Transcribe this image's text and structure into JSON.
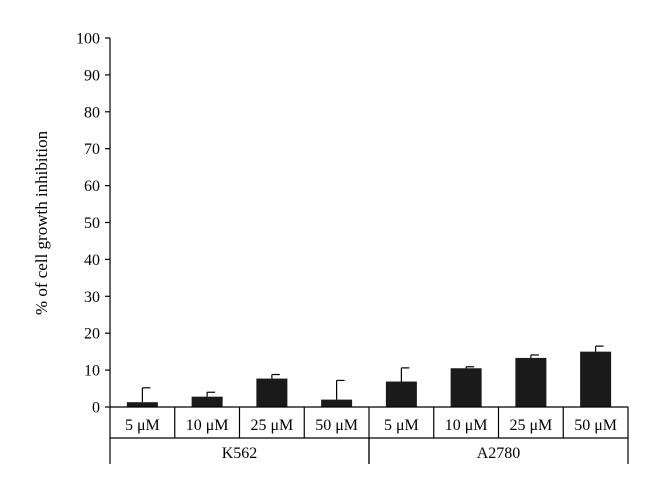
{
  "chart_data": {
    "type": "bar",
    "title": "",
    "xlabel": "",
    "ylabel": "% of cell growth inhibition",
    "ylim": [
      0,
      100
    ],
    "yticks": [
      0,
      10,
      20,
      30,
      40,
      50,
      60,
      70,
      80,
      90,
      100
    ],
    "grid": false,
    "legend": "none",
    "bar_color": "#1a1a1a",
    "groups": [
      {
        "name": "K562",
        "categories": [
          "5 μM",
          "10 μM",
          "25 μM",
          "50 μM"
        ]
      },
      {
        "name": "A2780",
        "categories": [
          "5 μM",
          "10 μM",
          "25 μM",
          "50 μM"
        ]
      }
    ],
    "categories": [
      "5 μM",
      "10 μM",
      "25 μM",
      "50 μM",
      "5 μM",
      "10 μM",
      "25 μM",
      "50 μM"
    ],
    "values": [
      1.3,
      2.8,
      7.7,
      2.0,
      6.9,
      10.5,
      13.3,
      15.0
    ],
    "errors": [
      3.9,
      1.2,
      1.1,
      5.2,
      3.7,
      0.4,
      0.8,
      1.5
    ]
  }
}
